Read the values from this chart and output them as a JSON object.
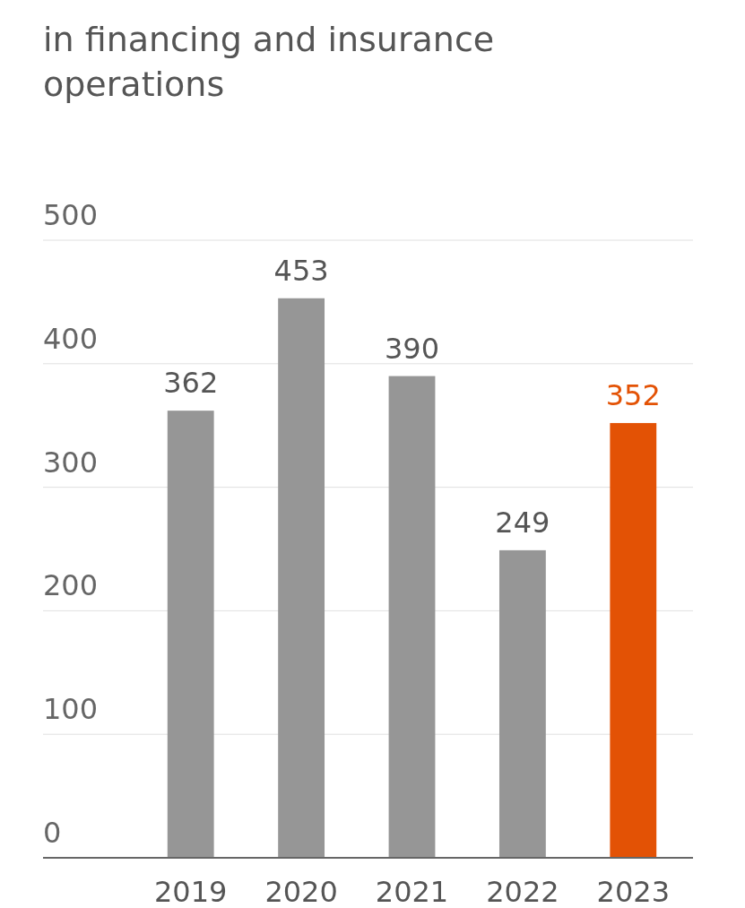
{
  "chart_data": {
    "type": "bar",
    "title": "in financing and insurance operations",
    "categories": [
      "2019",
      "2020",
      "2021",
      "2022",
      "2023"
    ],
    "values": [
      362,
      453,
      390,
      249,
      352
    ],
    "colors": [
      "#969696",
      "#969696",
      "#969696",
      "#969696",
      "#e35205"
    ],
    "ylim": [
      0,
      500
    ],
    "yticks": [
      0,
      100,
      200,
      300,
      400,
      500
    ],
    "grid": "y",
    "data_labels": true
  }
}
